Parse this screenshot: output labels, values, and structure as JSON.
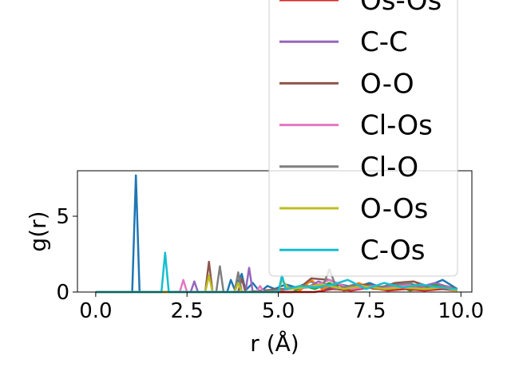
{
  "chart_data": {
    "type": "line",
    "title": "",
    "xlabel": "r (Å)",
    "ylabel": "g(r)",
    "xlim": [
      -0.5,
      10.3
    ],
    "ylim": [
      0,
      8
    ],
    "x_ticks": [
      {
        "value": 0.0,
        "label": "0.0"
      },
      {
        "value": 2.5,
        "label": "2.5"
      },
      {
        "value": 5.0,
        "label": "5.0"
      },
      {
        "value": 7.5,
        "label": "7.5"
      },
      {
        "value": 10.0,
        "label": "10.0"
      }
    ],
    "y_ticks": [
      {
        "value": 0,
        "label": "0"
      },
      {
        "value": 5,
        "label": "5"
      }
    ],
    "grid": false,
    "legend_position": "upper-right",
    "legend": [
      {
        "name": "Os-Os",
        "color": "#d62728"
      },
      {
        "name": "C-C",
        "color": "#9467bd"
      },
      {
        "name": "O-O",
        "color": "#8c564b"
      },
      {
        "name": "Cl-Os",
        "color": "#e377c2"
      },
      {
        "name": "Cl-O",
        "color": "#7f7f7f"
      },
      {
        "name": "O-Os",
        "color": "#bcbd22"
      },
      {
        "name": "C-Os",
        "color": "#17becf"
      }
    ],
    "series": [
      {
        "name": "",
        "color": "#1f77b4",
        "x": [
          0,
          1.0,
          1.1,
          1.2,
          1.3,
          3.6,
          3.7,
          3.8,
          4.0,
          4.1,
          4.3,
          4.5,
          4.7,
          4.9,
          5.2,
          5.5,
          5.9,
          6.3,
          6.7,
          7.1,
          7.5,
          7.9,
          8.3,
          8.7,
          9.1,
          9.5,
          9.9
        ],
        "y": [
          0,
          0,
          7.7,
          0,
          0,
          0,
          0.8,
          0.2,
          1.2,
          0.1,
          0.6,
          0,
          0.4,
          0.2,
          0.5,
          0.3,
          0.7,
          0.2,
          0.5,
          0.3,
          0.6,
          0.2,
          0.5,
          0.3,
          0.4,
          0.8,
          0.2
        ]
      },
      {
        "name": "",
        "color": "#ff7f0e",
        "x": [
          0,
          5.0,
          5.3,
          5.6,
          5.9,
          6.2,
          6.5,
          6.8,
          7.2,
          7.6,
          8.0,
          8.4,
          8.8,
          9.2,
          9.6,
          9.9
        ],
        "y": [
          0,
          0,
          0.3,
          0.1,
          0.8,
          0.2,
          0.5,
          0.1,
          0.6,
          0.2,
          0.4,
          0.3,
          0.5,
          0.2,
          0.4,
          0.1
        ]
      },
      {
        "name": "",
        "color": "#2ca02c",
        "x": [
          0,
          5.4,
          5.7,
          6.0,
          6.4,
          6.8,
          7.2,
          7.7,
          8.2,
          8.6,
          9.0,
          9.4,
          9.8
        ],
        "y": [
          0,
          0,
          0.4,
          0.2,
          0.6,
          0.1,
          0.4,
          0.2,
          0.5,
          0.1,
          0.3,
          0.5,
          0.2
        ]
      },
      {
        "name": "Os-Os",
        "color": "#d62728",
        "x": [
          0,
          6.0,
          6.5,
          7.0,
          7.5,
          8.0,
          8.5,
          9.0,
          9.5,
          9.9
        ],
        "y": [
          0,
          0,
          0.2,
          0.1,
          0.3,
          0.1,
          0.2,
          0.1,
          0.2,
          0.1
        ]
      },
      {
        "name": "C-C",
        "color": "#9467bd",
        "x": [
          0,
          2.6,
          2.7,
          2.8,
          3.0,
          4.1,
          4.2,
          4.3,
          5.8,
          6.1,
          6.6,
          7.4,
          7.9,
          8.3,
          8.8,
          9.3,
          9.7,
          9.9
        ],
        "y": [
          0,
          0,
          0.7,
          0,
          0,
          0,
          1.6,
          0,
          0.3,
          0.7,
          0.2,
          0.5,
          0.2,
          0.6,
          0.3,
          0.6,
          0.3,
          0.2
        ]
      },
      {
        "name": "O-O",
        "color": "#8c564b",
        "x": [
          0,
          3.0,
          3.1,
          3.2,
          3.4,
          3.9,
          4.0,
          4.1,
          5.6,
          5.9,
          6.4,
          6.9,
          7.4,
          7.8,
          8.2,
          8.7,
          9.2,
          9.6,
          9.9
        ],
        "y": [
          0,
          0,
          2.0,
          0,
          0,
          0,
          0.9,
          0,
          0.3,
          0.9,
          0.8,
          0.2,
          0.5,
          0.3,
          0.6,
          0.7,
          0.3,
          0.4,
          0.2
        ]
      },
      {
        "name": "Cl-Os",
        "color": "#e377c2",
        "x": [
          0,
          2.3,
          2.4,
          2.5,
          2.6,
          4.4,
          4.5,
          4.6,
          5.7,
          6.0,
          6.4,
          7.0,
          7.6,
          8.1,
          8.6,
          9.1,
          9.6,
          9.9
        ],
        "y": [
          0,
          0,
          0.8,
          0,
          0,
          0,
          0.4,
          0,
          0.3,
          0.4,
          0.8,
          0.2,
          0.4,
          0.3,
          0.5,
          0.2,
          0.4,
          0.1
        ]
      },
      {
        "name": "Cl-O",
        "color": "#7f7f7f",
        "x": [
          0,
          3.3,
          3.4,
          3.5,
          3.7,
          3.8,
          3.9,
          4.0,
          4.6,
          5.8,
          6.2,
          6.4,
          6.6,
          7.1,
          7.6,
          8.0,
          8.6,
          9.0,
          9.5,
          9.9
        ],
        "y": [
          0,
          0,
          1.7,
          0,
          0,
          0,
          1.3,
          0,
          0,
          0.4,
          0.3,
          1.5,
          0.2,
          0.5,
          0.3,
          0.4,
          0.6,
          0.2,
          0.4,
          0.1
        ]
      },
      {
        "name": "O-Os",
        "color": "#bcbd22",
        "x": [
          0,
          3.0,
          3.1,
          3.2,
          3.4,
          3.8,
          3.9,
          4.0,
          5.0,
          5.1,
          5.3,
          5.7,
          6.2,
          6.8,
          7.3,
          7.9,
          8.4,
          9.0,
          9.5,
          9.9
        ],
        "y": [
          0,
          0,
          1.1,
          0,
          0,
          0,
          0.6,
          0,
          0,
          0.8,
          0.2,
          0.3,
          0.5,
          0.2,
          0.4,
          0.2,
          0.3,
          0.2,
          0.3,
          0.1
        ]
      },
      {
        "name": "C-Os",
        "color": "#17becf",
        "x": [
          0,
          1.8,
          1.9,
          2.0,
          2.1,
          5.0,
          5.1,
          5.2,
          5.6,
          6.0,
          6.5,
          6.9,
          7.4,
          7.9,
          8.4,
          8.9,
          9.4,
          9.9
        ],
        "y": [
          0,
          0,
          2.6,
          0,
          0,
          0,
          1.1,
          0.2,
          0.4,
          0.3,
          0.5,
          0.8,
          0.2,
          0.6,
          0.3,
          0.5,
          0.3,
          0.2
        ]
      }
    ]
  }
}
